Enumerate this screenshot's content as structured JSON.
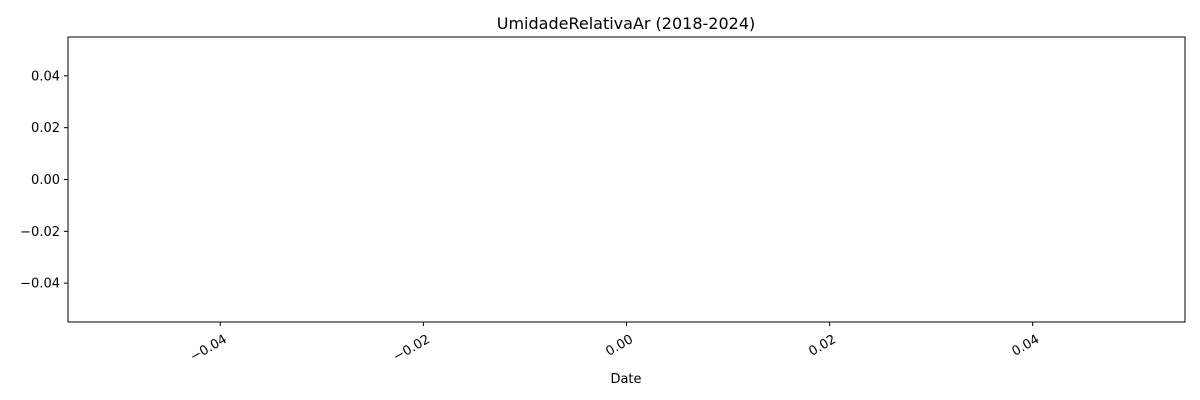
{
  "chart_data": {
    "type": "line",
    "title": "UmidadeRelativaAr (2018-2024)",
    "xlabel": "Date",
    "ylabel": "",
    "xlim": [
      -0.055,
      0.055
    ],
    "ylim": [
      -0.055,
      0.055
    ],
    "x_ticks": [
      -0.04,
      -0.02,
      0.0,
      0.02,
      0.04
    ],
    "x_tick_labels": [
      "−0.04",
      "−0.02",
      "0.00",
      "0.02",
      "0.04"
    ],
    "y_ticks": [
      0.04,
      0.02,
      0.0,
      -0.02,
      -0.04
    ],
    "y_tick_labels": [
      "0.04",
      "0.02",
      "0.00",
      "−0.02",
      "−0.04"
    ],
    "series": [],
    "grid": false,
    "legend": false
  }
}
